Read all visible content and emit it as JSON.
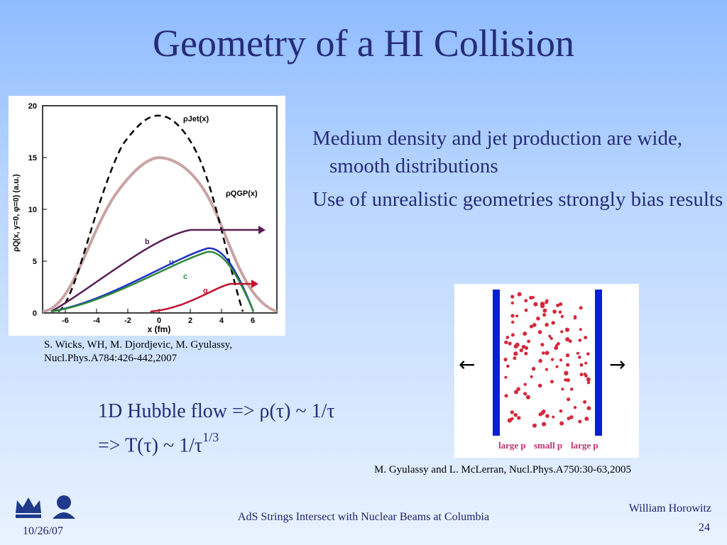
{
  "slide": {
    "title": "Geometry of a HI Collision",
    "bullets": [
      "Medium density and jet production are wide, smooth distributions",
      "Use of unrealistic geometries strongly bias results"
    ],
    "hubble_line1": "1D Hubble flow => ρ(τ) ~ 1/τ",
    "hubble_line2_main": "=> T(τ) ~ 1/τ",
    "hubble_line2_sup": "1/3",
    "citation_left": "S. Wicks, WH, M. Djordjevic, M. Gyulassy, Nucl.Phys.A784:426-442,2007",
    "citation_right": "M. Gyulassy and L. McLerran, Nucl.Phys.A750:30-63,2005",
    "footer_center": "AdS Strings Intersect with Nuclear Beams at Columbia",
    "author": "William Horowitz",
    "page_number": "24",
    "date": "10/26/07"
  },
  "plot": {
    "xlabel": "x (fm)",
    "ylabel": "ρQ(x, y=0, φ=0) (a.u.)",
    "x_ticks": [
      "-6",
      "-4",
      "-2",
      "0",
      "2",
      "4",
      "6"
    ],
    "y_ticks": [
      "0",
      "5",
      "10",
      "15",
      "20"
    ],
    "labels": {
      "jet": "ρJet(x)",
      "qgp": "ρQGP(x)",
      "b": "b",
      "u": "u",
      "c": "c",
      "g": "g"
    },
    "colors": {
      "qgp": "#c9a3a3",
      "jet": "#000000",
      "b": "#5a1e56",
      "u": "#1f2fc7",
      "c": "#2e8b3a",
      "g": "#c4122e"
    }
  },
  "diagram": {
    "labels": [
      "large p",
      "small p",
      "large p"
    ],
    "arrows": [
      "←",
      "→"
    ],
    "colors": {
      "wall": "#0a1ed6",
      "dot": "#d42a3c",
      "label": "#c0306e"
    }
  }
}
